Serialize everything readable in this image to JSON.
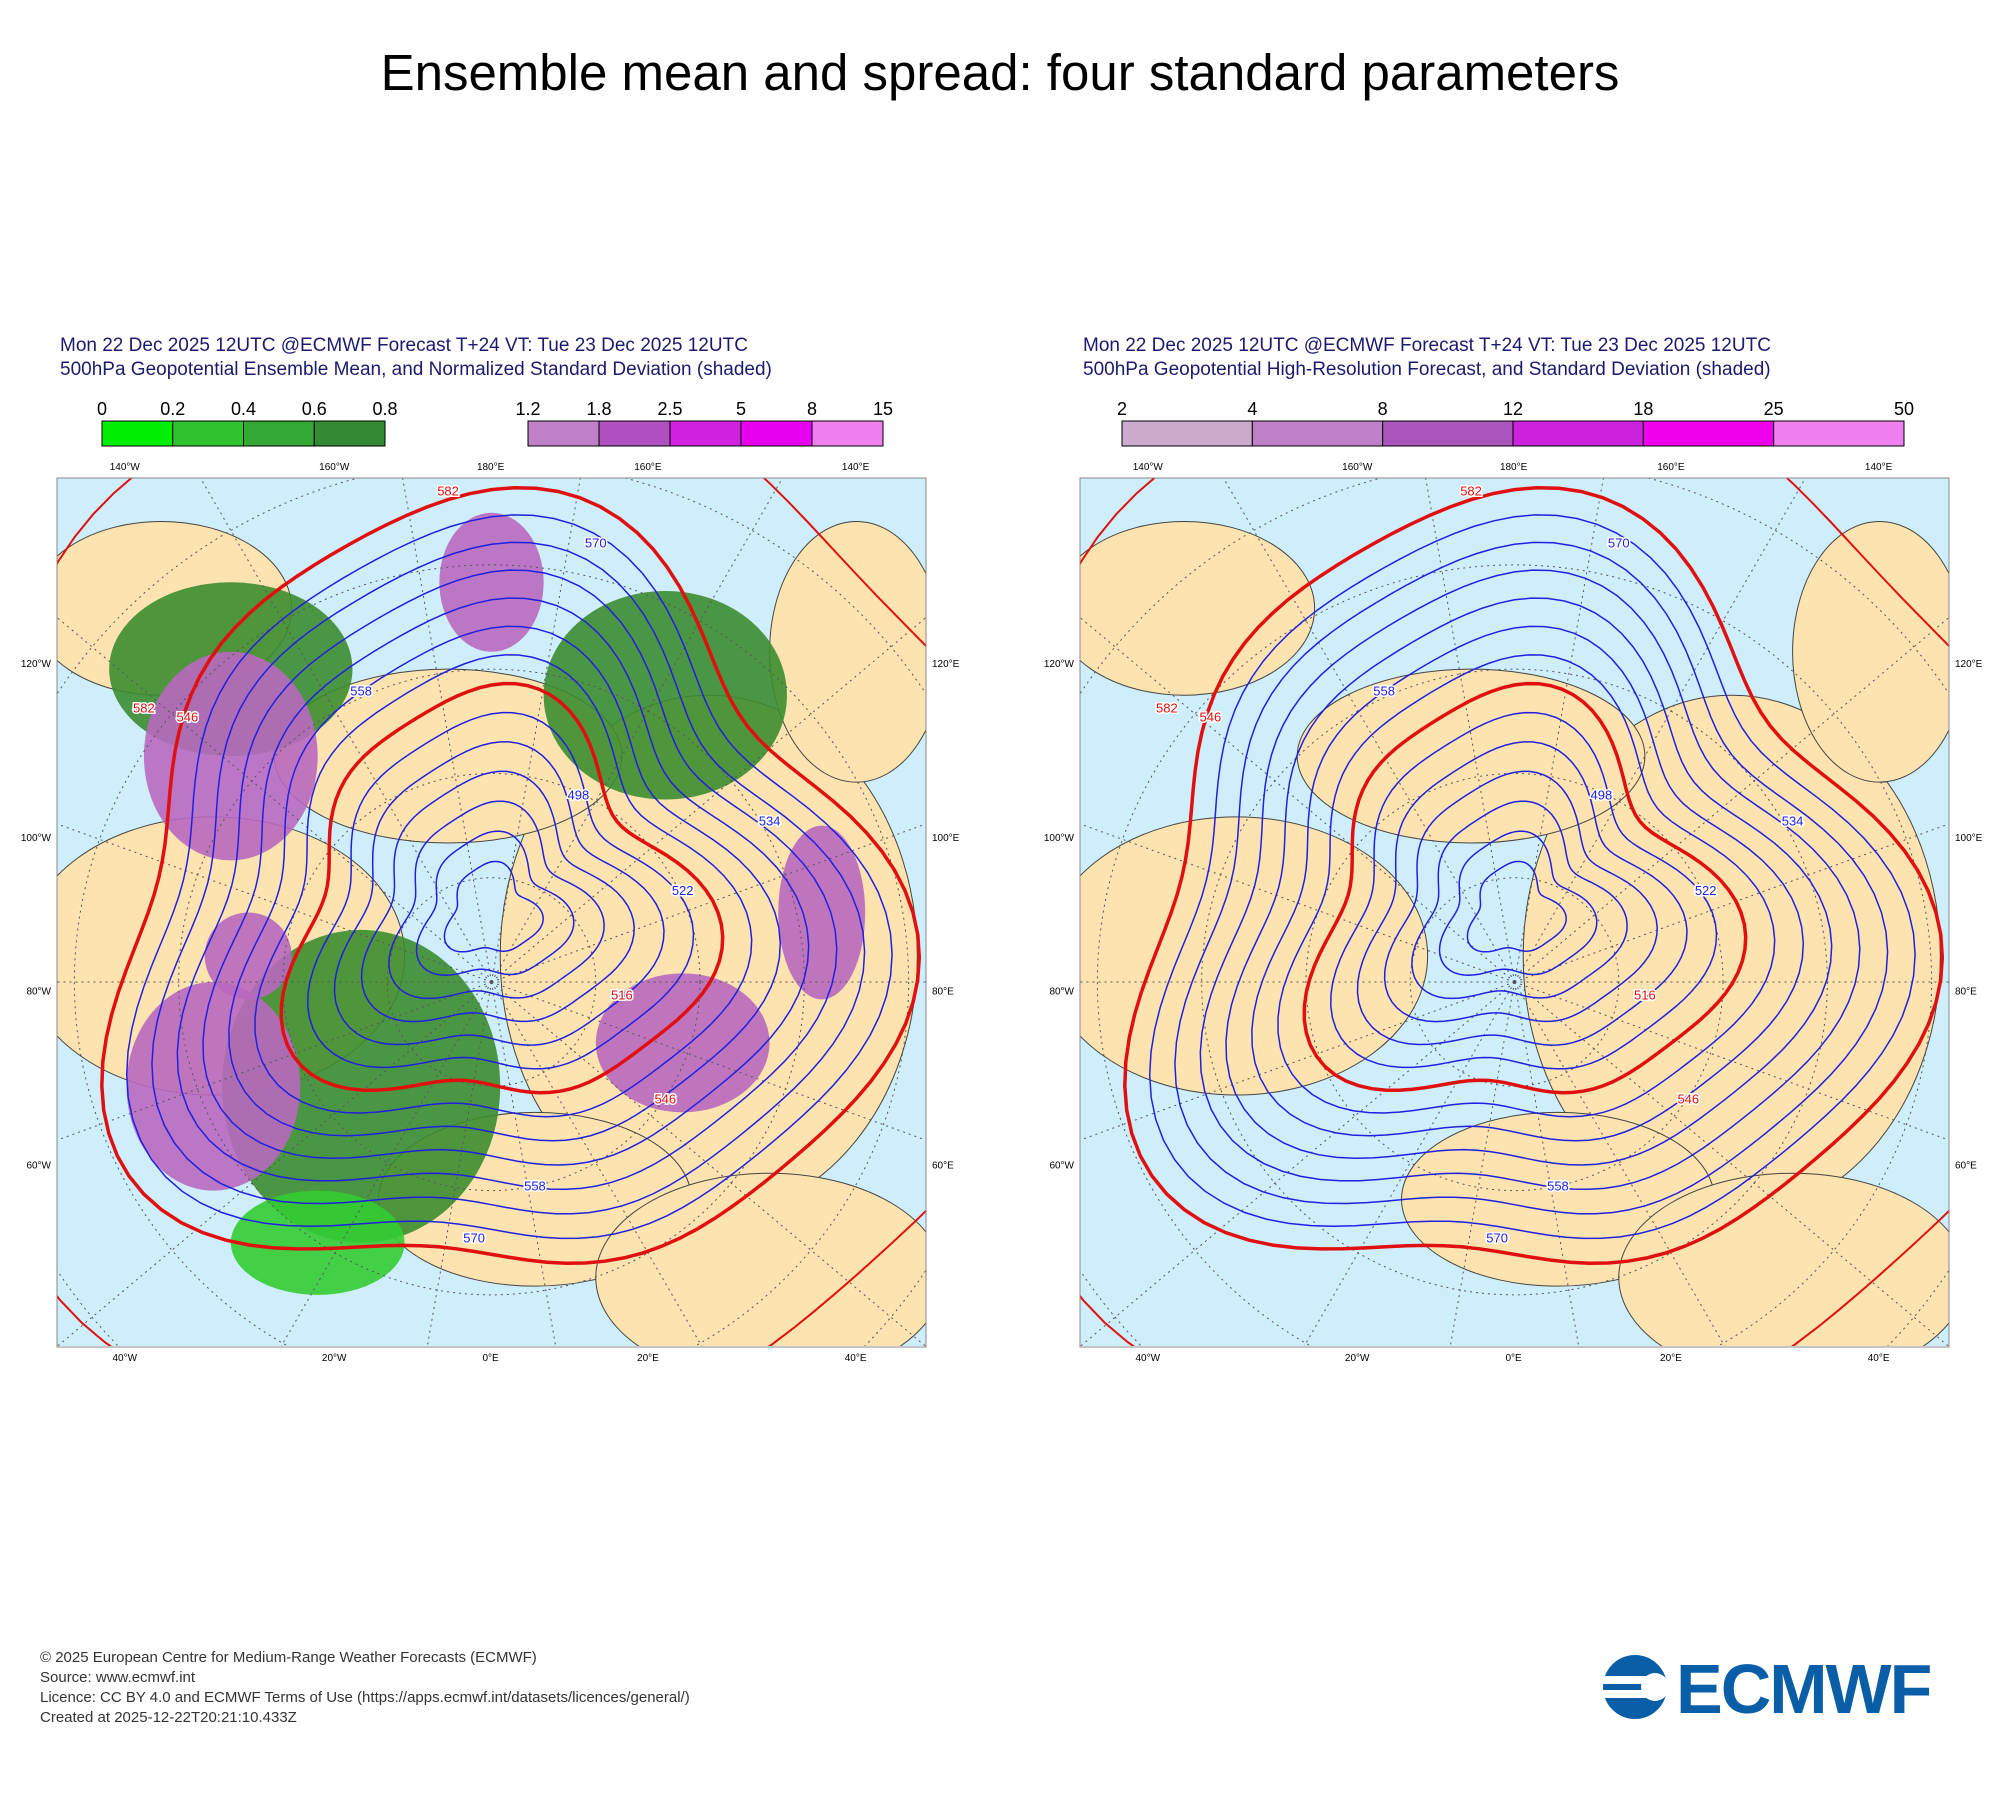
{
  "title": "Ensemble mean and spread: four standard parameters",
  "panels": [
    {
      "header": [
        "Mon 22 Dec 2025 12UTC @ECMWF Forecast T+24 VT: Tue 23 Dec 2025 12UTC",
        "500hPa Geopotential Ensemble Mean, and Normalized Standard Deviation (shaded)"
      ],
      "colorbars": [
        {
          "labels": [
            "0",
            "0.2",
            "0.4",
            "0.6",
            "0.8"
          ],
          "colors": [
            "#00ee00",
            "#2fc42f",
            "#33a833",
            "#338a33"
          ]
        },
        {
          "labels": [
            "1.2",
            "1.8",
            "2.5",
            "5",
            "8",
            "15"
          ],
          "colors": [
            "#c080c8",
            "#b050c0",
            "#d020e0",
            "#e800f0",
            "#f080f0"
          ]
        }
      ],
      "axis_labels": {
        "top": [
          "140°W",
          "160°W",
          "180°E",
          "160°E",
          "140°E"
        ],
        "left": [
          "120°W",
          "100°W",
          "80°W",
          "60°W"
        ],
        "right": [
          "120°E",
          "100°E",
          "80°E",
          "60°E"
        ],
        "bottom": [
          "40°W",
          "20°W",
          "0°E",
          "20°E",
          "40°E"
        ]
      },
      "contour_labels": [
        "582",
        "570",
        "558",
        "546",
        "534",
        "522",
        "498",
        "516",
        "546",
        "582",
        "570",
        "558"
      ]
    },
    {
      "header": [
        "Mon 22 Dec 2025 12UTC @ECMWF Forecast T+24 VT: Tue 23 Dec 2025 12UTC",
        "500hPa Geopotential High-Resolution Forecast, and Standard Deviation (shaded)"
      ],
      "colorbars": [
        {
          "labels": [
            "2",
            "4",
            "8",
            "12",
            "18",
            "25",
            "50"
          ],
          "colors": [
            "#ccaacc",
            "#c080c8",
            "#aa55bb",
            "#cc22dd",
            "#ee00ee",
            "#f080f0"
          ]
        }
      ],
      "axis_labels": {
        "top": [
          "140°W",
          "160°W",
          "180°E",
          "160°E",
          "140°E"
        ],
        "left": [
          "120°W",
          "100°W",
          "80°W",
          "60°W"
        ],
        "right": [
          "120°E",
          "100°E",
          "80°E",
          "60°E"
        ],
        "bottom": [
          "40°W",
          "20°W",
          "0°E",
          "20°E",
          "40°E"
        ]
      },
      "contour_labels": [
        "582",
        "570",
        "558",
        "546",
        "534",
        "522",
        "498",
        "516",
        "546",
        "582",
        "570",
        "558"
      ]
    }
  ],
  "footer": [
    "© 2025 European Centre for Medium-Range Weather Forecasts (ECMWF)",
    "Source: www.ecmwf.int",
    "Licence: CC BY 4.0 and ECMWF Terms of Use (https://apps.ecmwf.int/datasets/licences/general/)",
    "Created at 2025-12-22T20:21:10.433Z"
  ],
  "logo": "ECMWF"
}
